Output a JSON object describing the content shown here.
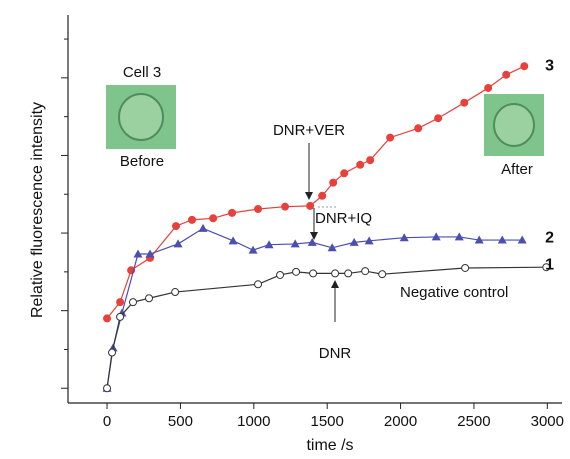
{
  "chart_data": {
    "type": "line",
    "x_label": "time /s",
    "y_label": "Relative fluorescence intensity",
    "xlim": [
      -266,
      3100
    ],
    "xticks": [
      0,
      500,
      1000,
      1500,
      2000,
      2500,
      3000
    ],
    "ylim": [
      -0.19,
      4.81
    ],
    "yticks": [
      0,
      0.5,
      1,
      1.5,
      2,
      2.5,
      3,
      3.5,
      4,
      4.5
    ],
    "series": [
      {
        "name": "3",
        "color": "#e8413c",
        "marker": "circle-half",
        "x": [
          0,
          89,
          164,
          293,
          470,
          579,
          723,
          852,
          1029,
          1213,
          1384,
          1466,
          1541,
          1616,
          1725,
          1793,
          1929,
          2120,
          2256,
          2434,
          2597,
          2720,
          2843
        ],
        "values": [
          0.9,
          1.11,
          1.52,
          1.68,
          2.09,
          2.17,
          2.19,
          2.26,
          2.31,
          2.34,
          2.35,
          2.48,
          2.65,
          2.77,
          2.88,
          2.94,
          3.23,
          3.35,
          3.48,
          3.68,
          3.87,
          4.04,
          4.15
        ]
      },
      {
        "name": "2",
        "color": "#4a4fb0",
        "marker": "triangle",
        "x": [
          0,
          41,
          102,
          211,
          293,
          484,
          654,
          859,
          995,
          1104,
          1282,
          1398,
          1534,
          1684,
          1786,
          2025,
          2243,
          2400,
          2536,
          2693,
          2829
        ],
        "values": [
          0,
          0.52,
          0.97,
          1.73,
          1.73,
          1.86,
          2.06,
          1.9,
          1.78,
          1.85,
          1.86,
          1.88,
          1.81,
          1.88,
          1.9,
          1.94,
          1.95,
          1.95,
          1.91,
          1.91,
          1.91
        ]
      },
      {
        "name": "1",
        "color": "#333333",
        "marker": "circle-open",
        "x": [
          0,
          34,
          89,
          177,
          286,
          464,
          1029,
          1179,
          1288,
          1404,
          1554,
          1643,
          1759,
          1875,
          2440,
          2993
        ],
        "values": [
          0,
          0.46,
          0.92,
          1.11,
          1.16,
          1.24,
          1.34,
          1.46,
          1.5,
          1.48,
          1.48,
          1.48,
          1.51,
          1.47,
          1.55,
          1.56
        ]
      }
    ],
    "annotations": [
      "Cell 3",
      "Before",
      "After",
      "DNR+VER",
      "DNR+IQ",
      "DNR",
      "Negative control"
    ]
  }
}
